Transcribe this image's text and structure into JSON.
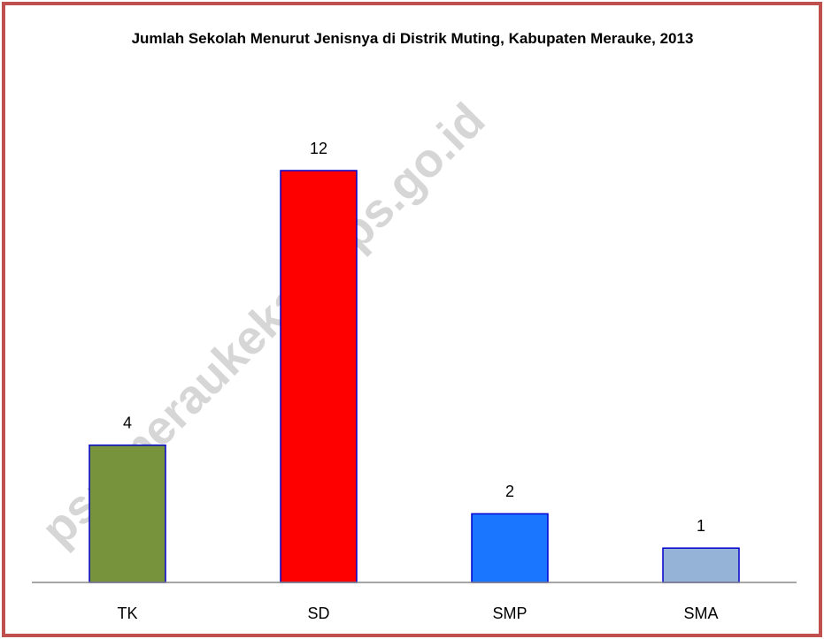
{
  "chart_data": {
    "type": "bar",
    "title": "Jumlah Sekolah Menurut Jenisnya di Distrik Muting, Kabupaten Merauke, 2013",
    "categories": [
      "TK",
      "SD",
      "SMP",
      "SMA"
    ],
    "values": [
      4,
      12,
      2,
      1
    ],
    "colors": [
      "#77933c",
      "#ff0000",
      "#1a75ff",
      "#95b3d7"
    ],
    "bar_edge_color": "#0000cc",
    "ylim": [
      0,
      12
    ],
    "watermark": "ps://meraukekab.bps.go.id"
  }
}
